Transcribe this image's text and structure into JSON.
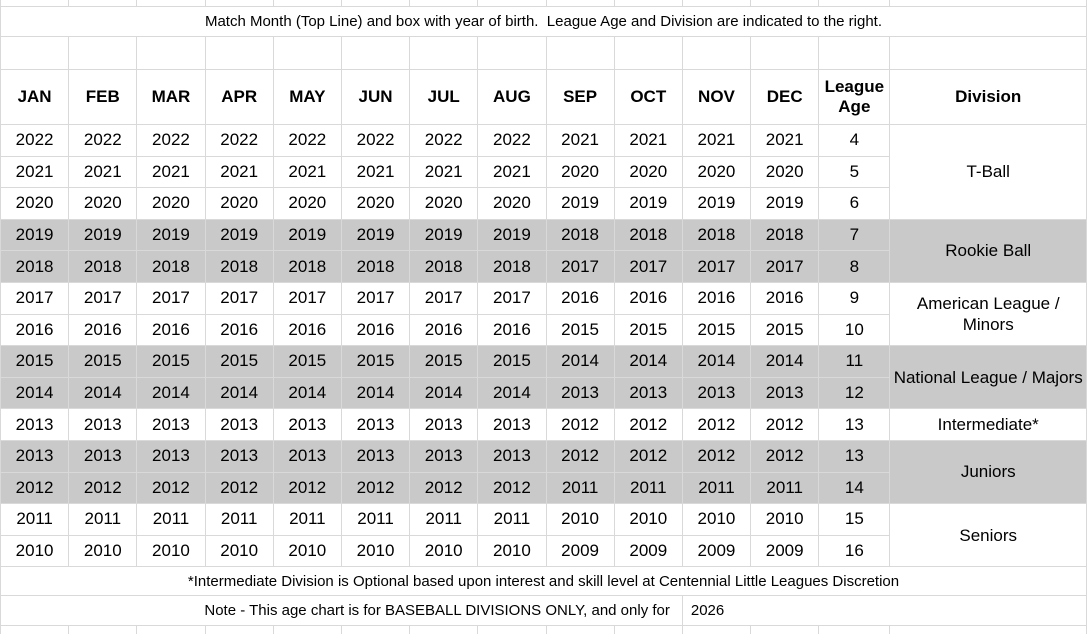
{
  "header": {
    "instruction": "Match Month (Top Line) and box with year of birth.  League Age and Division are indicated to the right.",
    "months": [
      "JAN",
      "FEB",
      "MAR",
      "APR",
      "MAY",
      "JUN",
      "JUL",
      "AUG",
      "SEP",
      "OCT",
      "NOV",
      "DEC"
    ],
    "league_age_label": "League Age",
    "division_label": "Division"
  },
  "table": {
    "rows": [
      {
        "year_jan_aug": "2022",
        "year_sep_dec": "2021",
        "league_age": "4",
        "shaded": false
      },
      {
        "year_jan_aug": "2021",
        "year_sep_dec": "2020",
        "league_age": "5",
        "shaded": false
      },
      {
        "year_jan_aug": "2020",
        "year_sep_dec": "2019",
        "league_age": "6",
        "shaded": false
      },
      {
        "year_jan_aug": "2019",
        "year_sep_dec": "2018",
        "league_age": "7",
        "shaded": true
      },
      {
        "year_jan_aug": "2018",
        "year_sep_dec": "2017",
        "league_age": "8",
        "shaded": true
      },
      {
        "year_jan_aug": "2017",
        "year_sep_dec": "2016",
        "league_age": "9",
        "shaded": false
      },
      {
        "year_jan_aug": "2016",
        "year_sep_dec": "2015",
        "league_age": "10",
        "shaded": false
      },
      {
        "year_jan_aug": "2015",
        "year_sep_dec": "2014",
        "league_age": "11",
        "shaded": true
      },
      {
        "year_jan_aug": "2014",
        "year_sep_dec": "2013",
        "league_age": "12",
        "shaded": true
      },
      {
        "year_jan_aug": "2013",
        "year_sep_dec": "2012",
        "league_age": "13",
        "shaded": false
      },
      {
        "year_jan_aug": "2013",
        "year_sep_dec": "2012",
        "league_age": "13",
        "shaded": true
      },
      {
        "year_jan_aug": "2012",
        "year_sep_dec": "2011",
        "league_age": "14",
        "shaded": true
      },
      {
        "year_jan_aug": "2011",
        "year_sep_dec": "2010",
        "league_age": "15",
        "shaded": false
      },
      {
        "year_jan_aug": "2010",
        "year_sep_dec": "2009",
        "league_age": "16",
        "shaded": false
      }
    ],
    "divisions": [
      {
        "name": "T-Ball",
        "row_start": 0,
        "row_span": 3,
        "shaded": false
      },
      {
        "name": "Rookie Ball",
        "row_start": 3,
        "row_span": 2,
        "shaded": true
      },
      {
        "name": "American League / Minors",
        "row_start": 5,
        "row_span": 2,
        "shaded": false
      },
      {
        "name": "National League / Majors",
        "row_start": 7,
        "row_span": 2,
        "shaded": true
      },
      {
        "name": "Intermediate*",
        "row_start": 9,
        "row_span": 1,
        "shaded": false
      },
      {
        "name": "Juniors",
        "row_start": 10,
        "row_span": 2,
        "shaded": true
      },
      {
        "name": "Seniors",
        "row_start": 12,
        "row_span": 2,
        "shaded": false
      }
    ]
  },
  "footer": {
    "footnote": "*Intermediate Division is Optional based upon interest and skill level at Centennial Little Leagues Discretion",
    "note_text": "Note - This age chart is for BASEBALL DIVISIONS ONLY, and only for",
    "note_year": "2026"
  },
  "colors": {
    "shaded_row_bg": "#c9c9c9",
    "cell_border": "#d9d9d9",
    "text": "#000000",
    "background": "#ffffff"
  }
}
